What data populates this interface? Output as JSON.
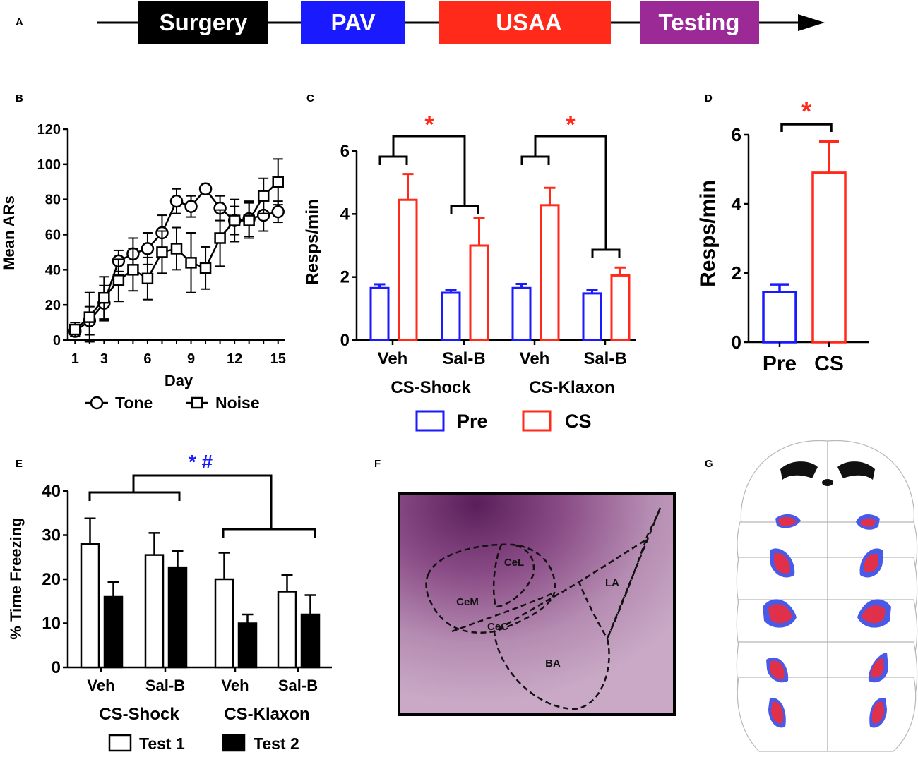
{
  "panel_letters": {
    "A": "A",
    "B": "B",
    "C": "C",
    "D": "D",
    "E": "E",
    "F": "F",
    "G": "G"
  },
  "timeline": {
    "stages": [
      {
        "label": "Surgery",
        "color": "#000000"
      },
      {
        "label": "PAV",
        "color": "#1a1aff"
      },
      {
        "label": "USAA",
        "color": "#ff2a1a"
      },
      {
        "label": "Testing",
        "color": "#9b2a96"
      }
    ]
  },
  "histology": {
    "regions": [
      "CeL",
      "CeM",
      "CeC",
      "LA",
      "BA"
    ]
  },
  "chart_data": [
    {
      "panel": "B",
      "type": "line",
      "xlabel": "Day",
      "ylabel": "Mean ARs",
      "xticks": [
        1,
        3,
        6,
        9,
        12,
        15
      ],
      "yticks": [
        0,
        20,
        40,
        60,
        80,
        100,
        120
      ],
      "xlim": [
        0.5,
        15.5
      ],
      "ylim": [
        0,
        120
      ],
      "series": [
        {
          "name": "Tone",
          "marker": "circle",
          "x": [
            1,
            2,
            3,
            4,
            5,
            6,
            7,
            8,
            9,
            10,
            11,
            12,
            13,
            14,
            15
          ],
          "values": [
            5,
            11,
            21,
            45,
            49,
            52,
            61,
            79,
            76,
            86,
            75,
            68,
            69,
            71,
            73
          ],
          "errors": [
            3,
            8,
            10,
            6,
            9,
            9,
            10,
            7,
            6,
            0,
            7,
            8,
            10,
            9,
            6
          ]
        },
        {
          "name": "Noise",
          "marker": "square",
          "x": [
            1,
            2,
            3,
            4,
            5,
            6,
            7,
            8,
            9,
            10,
            11,
            12,
            13,
            14,
            15
          ],
          "values": [
            6,
            13,
            24,
            34,
            40,
            35,
            50,
            52,
            44,
            41,
            58,
            68,
            68,
            82,
            90
          ],
          "errors": [
            4,
            14,
            12,
            12,
            12,
            12,
            12,
            12,
            17,
            12,
            16,
            12,
            10,
            10,
            13
          ]
        }
      ]
    },
    {
      "panel": "C",
      "type": "bar",
      "ylabel": "Resps/min",
      "ylim": [
        0,
        6
      ],
      "yticks": [
        0,
        2,
        4,
        6
      ],
      "categories": [
        "Veh",
        "Sal-B",
        "Veh",
        "Sal-B"
      ],
      "groups": [
        "CS-Shock",
        "CS-Klaxon"
      ],
      "series": [
        {
          "name": "Pre",
          "color": "#1a1aff",
          "values": [
            1.65,
            1.5,
            1.65,
            1.48
          ],
          "errors": [
            0.12,
            0.1,
            0.13,
            0.1
          ]
        },
        {
          "name": "CS",
          "color": "#ff2a1a",
          "values": [
            4.45,
            3.0,
            4.28,
            2.05
          ],
          "errors": [
            0.82,
            0.87,
            0.55,
            0.25
          ]
        }
      ],
      "significance": [
        "*",
        "*"
      ]
    },
    {
      "panel": "D",
      "type": "bar",
      "ylabel": "Resps/min",
      "ylim": [
        0,
        6
      ],
      "yticks": [
        0,
        2,
        4,
        6
      ],
      "categories": [
        "Pre",
        "CS"
      ],
      "values": [
        1.45,
        4.9
      ],
      "errors": [
        0.22,
        0.9
      ],
      "colors": [
        "#1a1aff",
        "#ff2a1a"
      ],
      "significance": "*"
    },
    {
      "panel": "E",
      "type": "bar",
      "ylabel": "% Time Freezing",
      "ylim": [
        0,
        40
      ],
      "yticks": [
        0,
        10,
        20,
        30,
        40
      ],
      "categories": [
        "Veh",
        "Sal-B",
        "Veh",
        "Sal-B"
      ],
      "groups": [
        "CS-Shock",
        "CS-Klaxon"
      ],
      "series": [
        {
          "name": "Test 1",
          "fill": "#ffffff",
          "values": [
            28,
            25.5,
            20,
            17.2
          ],
          "errors": [
            5.8,
            5.0,
            6.0,
            3.8
          ]
        },
        {
          "name": "Test 2",
          "fill": "#000000",
          "values": [
            16,
            22.7,
            10,
            12
          ],
          "errors": [
            3.4,
            3.7,
            2.0,
            4.4
          ]
        }
      ],
      "significance": "* #"
    }
  ]
}
